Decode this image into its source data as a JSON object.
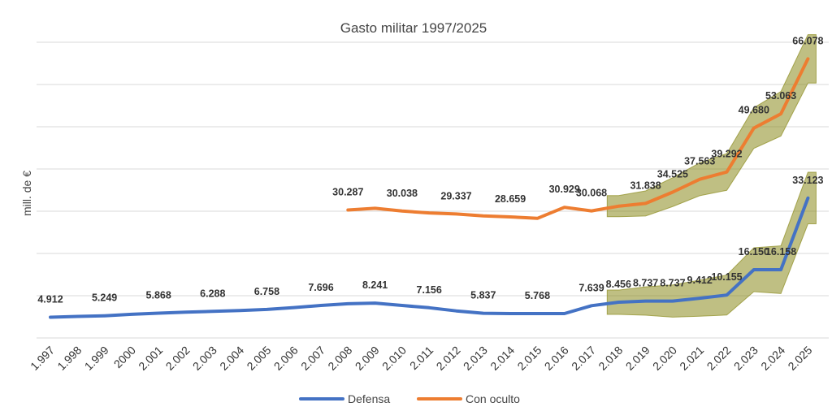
{
  "chart_data": {
    "type": "line",
    "title": "Gasto militar 1997/2025",
    "xlabel": "",
    "ylabel": "mill. de €",
    "categories": [
      "1.997",
      "1.998",
      "1.999",
      "2000",
      "2.001",
      "2.002",
      "2.003",
      "2.004",
      "2.005",
      "2.006",
      "2.007",
      "2.008",
      "2.009",
      "2.010",
      "2.011",
      "2.012",
      "2.013",
      "2.014",
      "2.015",
      "2.016",
      "2.017",
      "2.018",
      "2.019",
      "2.020",
      "2.021",
      "2.022",
      "2.023",
      "2.024",
      "2.025"
    ],
    "series": [
      {
        "name": "Defensa",
        "color": "#4472C4",
        "values": [
          4912,
          5100,
          5249,
          5600,
          5868,
          6100,
          6288,
          6500,
          6758,
          7200,
          7696,
          8100,
          8241,
          7700,
          7156,
          6400,
          5837,
          5768,
          5768,
          5768,
          7639,
          8456,
          8737,
          8737,
          9412,
          10155,
          16150,
          16158,
          33123
        ]
      },
      {
        "name": "Con oculto",
        "color": "#ED7D31",
        "values": [
          null,
          null,
          null,
          null,
          null,
          null,
          null,
          null,
          null,
          null,
          null,
          30287,
          30700,
          30038,
          29600,
          29337,
          28900,
          28659,
          28300,
          30929,
          30068,
          31200,
          31838,
          34525,
          37563,
          39292,
          49680,
          53063,
          66078
        ]
      }
    ],
    "data_labels": [
      {
        "series": "Defensa",
        "year": "1.997",
        "text": "4.912"
      },
      {
        "series": "Defensa",
        "year": "1.999",
        "text": "5.249"
      },
      {
        "series": "Defensa",
        "year": "2.001",
        "text": "5.868"
      },
      {
        "series": "Defensa",
        "year": "2.003",
        "text": "6.288"
      },
      {
        "series": "Defensa",
        "year": "2.005",
        "text": "6.758"
      },
      {
        "series": "Defensa",
        "year": "2.007",
        "text": "7.696"
      },
      {
        "series": "Defensa",
        "year": "2.009",
        "text": "8.241"
      },
      {
        "series": "Defensa",
        "year": "2.011",
        "text": "7.156"
      },
      {
        "series": "Defensa",
        "year": "2.013",
        "text": "5.837"
      },
      {
        "series": "Defensa",
        "year": "2.015",
        "text": "5.768"
      },
      {
        "series": "Defensa",
        "year": "2.017",
        "text": "7.639"
      },
      {
        "series": "Defensa",
        "year": "2.018",
        "text": "8.456"
      },
      {
        "series": "Defensa",
        "year": "2.019",
        "text": "8.737"
      },
      {
        "series": "Defensa",
        "year": "2.020",
        "text": "8.737"
      },
      {
        "series": "Defensa",
        "year": "2.021",
        "text": "9.412"
      },
      {
        "series": "Defensa",
        "year": "2.022",
        "text": "10.155"
      },
      {
        "series": "Defensa",
        "year": "2.023",
        "text": "16.150"
      },
      {
        "series": "Defensa",
        "year": "2.024",
        "text": "16.158"
      },
      {
        "series": "Defensa",
        "year": "2.025",
        "text": "33.123"
      },
      {
        "series": "Con oculto",
        "year": "2.008",
        "text": "30.287"
      },
      {
        "series": "Con oculto",
        "year": "2.010",
        "text": "30.038"
      },
      {
        "series": "Con oculto",
        "year": "2.012",
        "text": "29.337"
      },
      {
        "series": "Con oculto",
        "year": "2.014",
        "text": "28.659"
      },
      {
        "series": "Con oculto",
        "year": "2.016",
        "text": "30.929"
      },
      {
        "series": "Con oculto",
        "year": "2.017",
        "text": "30.068"
      },
      {
        "series": "Con oculto",
        "year": "2.019",
        "text": "31.838"
      },
      {
        "series": "Con oculto",
        "year": "2.020",
        "text": "34.525"
      },
      {
        "series": "Con oculto",
        "year": "2.021",
        "text": "37.563"
      },
      {
        "series": "Con oculto",
        "year": "2.022",
        "text": "39.292"
      },
      {
        "series": "Con oculto",
        "year": "2.023",
        "text": "49.680"
      },
      {
        "series": "Con oculto",
        "year": "2.024",
        "text": "53.063"
      },
      {
        "series": "Con oculto",
        "year": "2.025",
        "text": "66.078"
      }
    ],
    "highlight": {
      "from": "2.018",
      "to": "2.025",
      "color": "#8B8B1E",
      "description": "shaded band over both series for 2.018–2.025"
    },
    "ylim": [
      0,
      70000
    ],
    "y_ticks_labeled": false,
    "grid": true,
    "legend_position": "bottom"
  }
}
